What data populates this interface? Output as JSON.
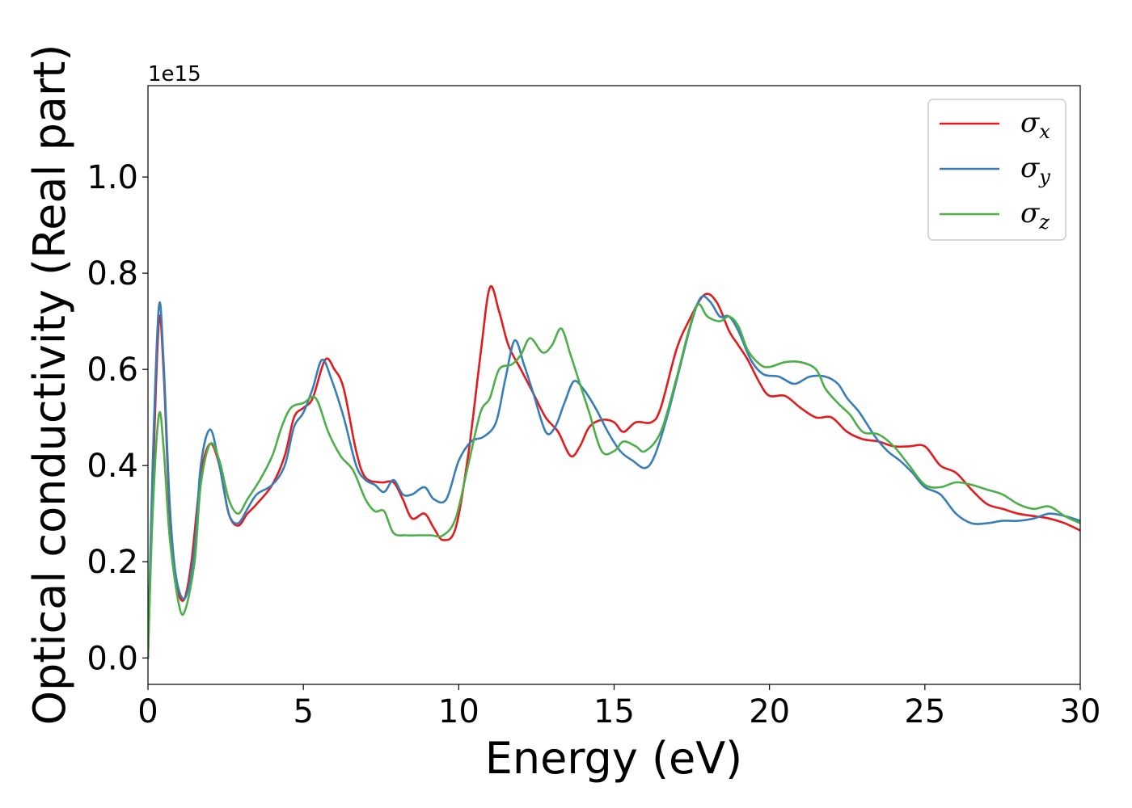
{
  "chart_data": {
    "type": "line",
    "xlabel": "Energy (eV)",
    "ylabel": "Optical conductivity (Real part)",
    "y_offset_label": "1e15",
    "xlim": [
      0,
      30
    ],
    "ylim": [
      -0.055,
      1.19
    ],
    "x_ticks": [
      0,
      5,
      10,
      15,
      20,
      25,
      30
    ],
    "x_tick_labels": [
      "0",
      "5",
      "10",
      "15",
      "20",
      "25",
      "30"
    ],
    "y_ticks": [
      0.0,
      0.2,
      0.4,
      0.6,
      0.8,
      1.0
    ],
    "y_tick_labels": [
      "0.0",
      "0.2",
      "0.4",
      "0.6",
      "0.8",
      "1.0"
    ],
    "grid": false,
    "legend_position": "top-right",
    "series": [
      {
        "name": "σx",
        "name_main": "σ",
        "name_sub": "x",
        "color": "#e41a1c",
        "points": [
          [
            0,
            0
          ],
          [
            0.15,
            0.35
          ],
          [
            0.35,
            0.7
          ],
          [
            0.5,
            0.6
          ],
          [
            0.7,
            0.3
          ],
          [
            0.9,
            0.16
          ],
          [
            1.15,
            0.12
          ],
          [
            1.4,
            0.2
          ],
          [
            1.7,
            0.38
          ],
          [
            2.0,
            0.445
          ],
          [
            2.3,
            0.4
          ],
          [
            2.6,
            0.3
          ],
          [
            2.9,
            0.275
          ],
          [
            3.2,
            0.3
          ],
          [
            3.5,
            0.32
          ],
          [
            4.0,
            0.36
          ],
          [
            4.4,
            0.42
          ],
          [
            4.7,
            0.5
          ],
          [
            5.0,
            0.52
          ],
          [
            5.3,
            0.54
          ],
          [
            5.7,
            0.62
          ],
          [
            6.0,
            0.6
          ],
          [
            6.3,
            0.56
          ],
          [
            6.7,
            0.43
          ],
          [
            7.0,
            0.375
          ],
          [
            7.5,
            0.365
          ],
          [
            7.9,
            0.365
          ],
          [
            8.2,
            0.33
          ],
          [
            8.5,
            0.29
          ],
          [
            8.9,
            0.3
          ],
          [
            9.2,
            0.27
          ],
          [
            9.5,
            0.245
          ],
          [
            9.9,
            0.27
          ],
          [
            10.3,
            0.42
          ],
          [
            10.7,
            0.63
          ],
          [
            11.0,
            0.77
          ],
          [
            11.3,
            0.72
          ],
          [
            11.6,
            0.65
          ],
          [
            12.0,
            0.6
          ],
          [
            12.4,
            0.55
          ],
          [
            12.8,
            0.5
          ],
          [
            13.2,
            0.47
          ],
          [
            13.6,
            0.42
          ],
          [
            13.9,
            0.44
          ],
          [
            14.2,
            0.48
          ],
          [
            14.6,
            0.495
          ],
          [
            15.0,
            0.49
          ],
          [
            15.3,
            0.47
          ],
          [
            15.7,
            0.49
          ],
          [
            16.2,
            0.49
          ],
          [
            16.5,
            0.52
          ],
          [
            17.0,
            0.64
          ],
          [
            17.4,
            0.7
          ],
          [
            17.9,
            0.755
          ],
          [
            18.3,
            0.74
          ],
          [
            18.7,
            0.68
          ],
          [
            19.0,
            0.65
          ],
          [
            19.3,
            0.62
          ],
          [
            19.7,
            0.57
          ],
          [
            20.0,
            0.545
          ],
          [
            20.5,
            0.545
          ],
          [
            21.0,
            0.52
          ],
          [
            21.5,
            0.5
          ],
          [
            22.0,
            0.5
          ],
          [
            22.5,
            0.47
          ],
          [
            23.0,
            0.455
          ],
          [
            23.5,
            0.45
          ],
          [
            24.0,
            0.44
          ],
          [
            24.5,
            0.44
          ],
          [
            25.0,
            0.44
          ],
          [
            25.5,
            0.4
          ],
          [
            26.0,
            0.385
          ],
          [
            26.5,
            0.35
          ],
          [
            27.0,
            0.32
          ],
          [
            27.5,
            0.31
          ],
          [
            28.0,
            0.3
          ],
          [
            28.5,
            0.295
          ],
          [
            29.0,
            0.29
          ],
          [
            29.5,
            0.28
          ],
          [
            30.0,
            0.265
          ]
        ]
      },
      {
        "name": "σy",
        "name_main": "σ",
        "name_sub": "y",
        "color": "#377eb8",
        "points": [
          [
            0,
            0
          ],
          [
            0.15,
            0.4
          ],
          [
            0.35,
            0.73
          ],
          [
            0.5,
            0.62
          ],
          [
            0.7,
            0.32
          ],
          [
            0.9,
            0.17
          ],
          [
            1.2,
            0.125
          ],
          [
            1.5,
            0.23
          ],
          [
            1.7,
            0.4
          ],
          [
            2.0,
            0.475
          ],
          [
            2.3,
            0.4
          ],
          [
            2.6,
            0.3
          ],
          [
            2.9,
            0.28
          ],
          [
            3.2,
            0.31
          ],
          [
            3.5,
            0.34
          ],
          [
            4.0,
            0.36
          ],
          [
            4.4,
            0.4
          ],
          [
            4.7,
            0.48
          ],
          [
            5.0,
            0.51
          ],
          [
            5.3,
            0.56
          ],
          [
            5.6,
            0.62
          ],
          [
            5.9,
            0.58
          ],
          [
            6.3,
            0.5
          ],
          [
            6.7,
            0.4
          ],
          [
            7.0,
            0.37
          ],
          [
            7.3,
            0.36
          ],
          [
            7.6,
            0.345
          ],
          [
            7.9,
            0.37
          ],
          [
            8.2,
            0.34
          ],
          [
            8.5,
            0.34
          ],
          [
            8.9,
            0.355
          ],
          [
            9.2,
            0.33
          ],
          [
            9.6,
            0.33
          ],
          [
            10.0,
            0.41
          ],
          [
            10.4,
            0.45
          ],
          [
            10.8,
            0.46
          ],
          [
            11.2,
            0.49
          ],
          [
            11.5,
            0.58
          ],
          [
            11.8,
            0.66
          ],
          [
            12.1,
            0.61
          ],
          [
            12.4,
            0.55
          ],
          [
            12.8,
            0.47
          ],
          [
            13.1,
            0.48
          ],
          [
            13.4,
            0.53
          ],
          [
            13.7,
            0.575
          ],
          [
            14.0,
            0.56
          ],
          [
            14.4,
            0.52
          ],
          [
            14.8,
            0.47
          ],
          [
            15.2,
            0.43
          ],
          [
            15.6,
            0.41
          ],
          [
            16.0,
            0.395
          ],
          [
            16.3,
            0.42
          ],
          [
            16.7,
            0.5
          ],
          [
            17.1,
            0.6
          ],
          [
            17.5,
            0.7
          ],
          [
            17.8,
            0.75
          ],
          [
            18.1,
            0.74
          ],
          [
            18.4,
            0.71
          ],
          [
            18.7,
            0.71
          ],
          [
            19.0,
            0.68
          ],
          [
            19.4,
            0.62
          ],
          [
            19.8,
            0.59
          ],
          [
            20.3,
            0.585
          ],
          [
            20.8,
            0.57
          ],
          [
            21.3,
            0.585
          ],
          [
            21.8,
            0.585
          ],
          [
            22.2,
            0.57
          ],
          [
            22.5,
            0.54
          ],
          [
            22.9,
            0.51
          ],
          [
            23.4,
            0.46
          ],
          [
            23.8,
            0.43
          ],
          [
            24.2,
            0.41
          ],
          [
            24.6,
            0.385
          ],
          [
            25.0,
            0.355
          ],
          [
            25.5,
            0.34
          ],
          [
            26.0,
            0.3
          ],
          [
            26.5,
            0.28
          ],
          [
            27.0,
            0.28
          ],
          [
            27.5,
            0.285
          ],
          [
            28.0,
            0.285
          ],
          [
            28.5,
            0.29
          ],
          [
            29.0,
            0.3
          ],
          [
            29.5,
            0.295
          ],
          [
            30.0,
            0.285
          ]
        ]
      },
      {
        "name": "σz",
        "name_main": "σ",
        "name_sub": "z",
        "color": "#4daf4a",
        "points": [
          [
            0,
            0
          ],
          [
            0.15,
            0.3
          ],
          [
            0.35,
            0.505
          ],
          [
            0.5,
            0.44
          ],
          [
            0.7,
            0.25
          ],
          [
            1.0,
            0.11
          ],
          [
            1.2,
            0.1
          ],
          [
            1.5,
            0.2
          ],
          [
            1.7,
            0.36
          ],
          [
            2.0,
            0.445
          ],
          [
            2.3,
            0.41
          ],
          [
            2.6,
            0.33
          ],
          [
            2.9,
            0.3
          ],
          [
            3.2,
            0.33
          ],
          [
            3.6,
            0.37
          ],
          [
            4.0,
            0.42
          ],
          [
            4.3,
            0.48
          ],
          [
            4.6,
            0.52
          ],
          [
            5.0,
            0.53
          ],
          [
            5.4,
            0.54
          ],
          [
            5.8,
            0.47
          ],
          [
            6.2,
            0.42
          ],
          [
            6.6,
            0.39
          ],
          [
            7.0,
            0.33
          ],
          [
            7.3,
            0.305
          ],
          [
            7.6,
            0.305
          ],
          [
            7.9,
            0.26
          ],
          [
            8.3,
            0.255
          ],
          [
            8.7,
            0.255
          ],
          [
            9.1,
            0.255
          ],
          [
            9.5,
            0.255
          ],
          [
            9.9,
            0.29
          ],
          [
            10.3,
            0.4
          ],
          [
            10.7,
            0.51
          ],
          [
            11.0,
            0.54
          ],
          [
            11.3,
            0.6
          ],
          [
            11.7,
            0.61
          ],
          [
            12.0,
            0.63
          ],
          [
            12.3,
            0.665
          ],
          [
            12.7,
            0.635
          ],
          [
            13.0,
            0.65
          ],
          [
            13.3,
            0.685
          ],
          [
            13.6,
            0.63
          ],
          [
            13.9,
            0.57
          ],
          [
            14.2,
            0.51
          ],
          [
            14.6,
            0.43
          ],
          [
            15.0,
            0.43
          ],
          [
            15.3,
            0.45
          ],
          [
            15.7,
            0.44
          ],
          [
            16.0,
            0.43
          ],
          [
            16.5,
            0.47
          ],
          [
            17.0,
            0.58
          ],
          [
            17.4,
            0.68
          ],
          [
            17.7,
            0.735
          ],
          [
            18.0,
            0.71
          ],
          [
            18.4,
            0.7
          ],
          [
            18.7,
            0.71
          ],
          [
            19.0,
            0.69
          ],
          [
            19.3,
            0.64
          ],
          [
            19.7,
            0.61
          ],
          [
            20.0,
            0.605
          ],
          [
            20.5,
            0.615
          ],
          [
            21.0,
            0.615
          ],
          [
            21.5,
            0.6
          ],
          [
            21.8,
            0.56
          ],
          [
            22.2,
            0.53
          ],
          [
            22.6,
            0.505
          ],
          [
            23.0,
            0.47
          ],
          [
            23.5,
            0.465
          ],
          [
            24.0,
            0.44
          ],
          [
            24.5,
            0.4
          ],
          [
            25.0,
            0.36
          ],
          [
            25.5,
            0.355
          ],
          [
            26.0,
            0.365
          ],
          [
            26.5,
            0.36
          ],
          [
            27.0,
            0.35
          ],
          [
            27.5,
            0.34
          ],
          [
            28.0,
            0.32
          ],
          [
            28.5,
            0.31
          ],
          [
            29.0,
            0.315
          ],
          [
            29.5,
            0.295
          ],
          [
            30.0,
            0.28
          ]
        ]
      }
    ]
  }
}
